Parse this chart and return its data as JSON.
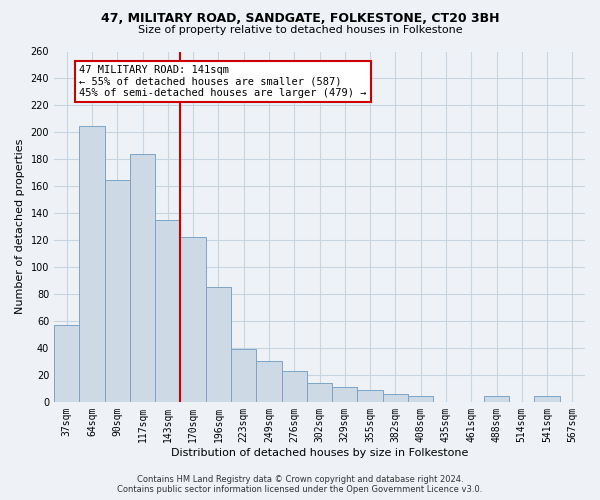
{
  "title": "47, MILITARY ROAD, SANDGATE, FOLKESTONE, CT20 3BH",
  "subtitle": "Size of property relative to detached houses in Folkestone",
  "xlabel": "Distribution of detached houses by size in Folkestone",
  "ylabel": "Number of detached properties",
  "categories": [
    "37sqm",
    "64sqm",
    "90sqm",
    "117sqm",
    "143sqm",
    "170sqm",
    "196sqm",
    "223sqm",
    "249sqm",
    "276sqm",
    "302sqm",
    "329sqm",
    "355sqm",
    "382sqm",
    "408sqm",
    "435sqm",
    "461sqm",
    "488sqm",
    "514sqm",
    "541sqm",
    "567sqm"
  ],
  "values": [
    57,
    205,
    165,
    184,
    135,
    122,
    85,
    39,
    30,
    23,
    14,
    11,
    9,
    6,
    4,
    0,
    0,
    4,
    0,
    4,
    0
  ],
  "bar_color": "#cdd9e5",
  "bar_edge_color": "#7aa4c8",
  "vline_color": "#cc0000",
  "annotation_title": "47 MILITARY ROAD: 141sqm",
  "annotation_line1": "← 55% of detached houses are smaller (587)",
  "annotation_line2": "45% of semi-detached houses are larger (479) →",
  "annotation_box_color": "#ffffff",
  "annotation_box_edge": "#cc0000",
  "ylim": [
    0,
    260
  ],
  "yticks": [
    0,
    20,
    40,
    60,
    80,
    100,
    120,
    140,
    160,
    180,
    200,
    220,
    240,
    260
  ],
  "footer1": "Contains HM Land Registry data © Crown copyright and database right 2024.",
  "footer2": "Contains public sector information licensed under the Open Government Licence v3.0.",
  "bg_color": "#eef2f7",
  "grid_color": "#c8d4e0",
  "title_fontsize": 9,
  "subtitle_fontsize": 8,
  "axis_label_fontsize": 8,
  "tick_fontsize": 7,
  "footer_fontsize": 6
}
